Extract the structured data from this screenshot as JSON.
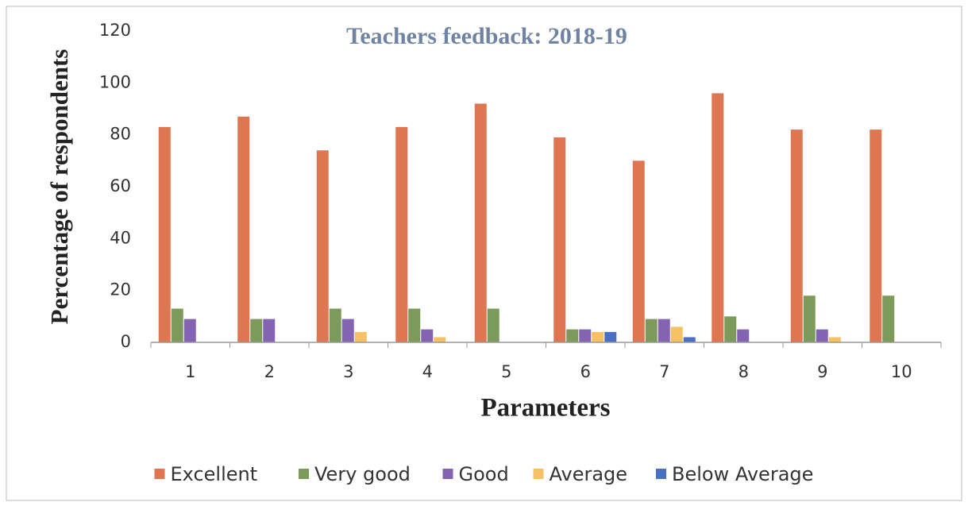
{
  "chart_data": {
    "type": "bar",
    "title": "Teachers feedback: 2018-19",
    "xlabel": "Parameters",
    "ylabel": "Percentage of respondents",
    "categories": [
      "1",
      "2",
      "3",
      "4",
      "5",
      "6",
      "7",
      "8",
      "9",
      "10"
    ],
    "series": [
      {
        "name": "Excellent",
        "color": "#de7651",
        "values": [
          83,
          87,
          74,
          83,
          92,
          79,
          70,
          96,
          82,
          82
        ]
      },
      {
        "name": "Very good",
        "color": "#7c9a5c",
        "values": [
          13,
          9,
          13,
          13,
          13,
          5,
          9,
          10,
          18,
          18
        ]
      },
      {
        "name": "Good",
        "color": "#8563b3",
        "values": [
          9,
          9,
          9,
          5,
          0,
          5,
          9,
          5,
          5,
          0
        ]
      },
      {
        "name": "Average",
        "color": "#f5c163",
        "values": [
          0,
          0,
          4,
          2,
          0,
          4,
          6,
          0,
          2,
          0
        ]
      },
      {
        "name": "Below Average",
        "color": "#4a70c2",
        "values": [
          0,
          0,
          0,
          0,
          0,
          4,
          2,
          0,
          0,
          0
        ]
      }
    ],
    "ylim": [
      0,
      120
    ],
    "yticks": [
      0,
      20,
      40,
      60,
      80,
      100,
      120
    ],
    "legend": "bottom"
  }
}
